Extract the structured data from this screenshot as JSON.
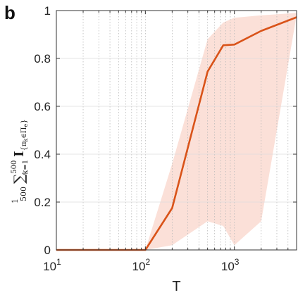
{
  "panel_label": "b",
  "chart_data": {
    "type": "line",
    "xscale": "log",
    "xlim": [
      10,
      5000
    ],
    "ylim": [
      0,
      1
    ],
    "grid": "x-minor-dotted, y-major-solid",
    "xlabel": "T",
    "ylabel": {
      "frac_num": "1",
      "frac_den": "500",
      "sum": "∑",
      "sum_upper": "500",
      "sum_lower": "k=1",
      "indicator": "I",
      "indicator_sub": "{π",
      "indicator_sub_k": "k",
      "indicator_sub_in": "∈Π",
      "indicator_sub_e": "e",
      "indicator_sub_end": "}"
    },
    "xticks": [
      {
        "value": 10,
        "base": "10",
        "exp": "1"
      },
      {
        "value": 100,
        "base": "10",
        "exp": "2"
      },
      {
        "value": 1000,
        "base": "10",
        "exp": "3"
      }
    ],
    "yticks": [
      "0",
      "0.2",
      "0.4",
      "0.6",
      "0.8",
      "1"
    ],
    "series": [
      {
        "color": "#d95319",
        "x": [
          10,
          20,
          50,
          100,
          200,
          500,
          750,
          1000,
          2000,
          5000
        ],
        "y": [
          0,
          0,
          0,
          0,
          0.175,
          0.745,
          0.855,
          0.858,
          0.915,
          0.972
        ],
        "band_color": "#fbe0d8",
        "band_lower": [
          0,
          0,
          0,
          0,
          0.02,
          0.12,
          0.1,
          0.02,
          0.12,
          0.98
        ],
        "band_upper": [
          0,
          0,
          0,
          0,
          0.36,
          0.88,
          0.95,
          0.97,
          0.98,
          0.99
        ]
      }
    ]
  }
}
